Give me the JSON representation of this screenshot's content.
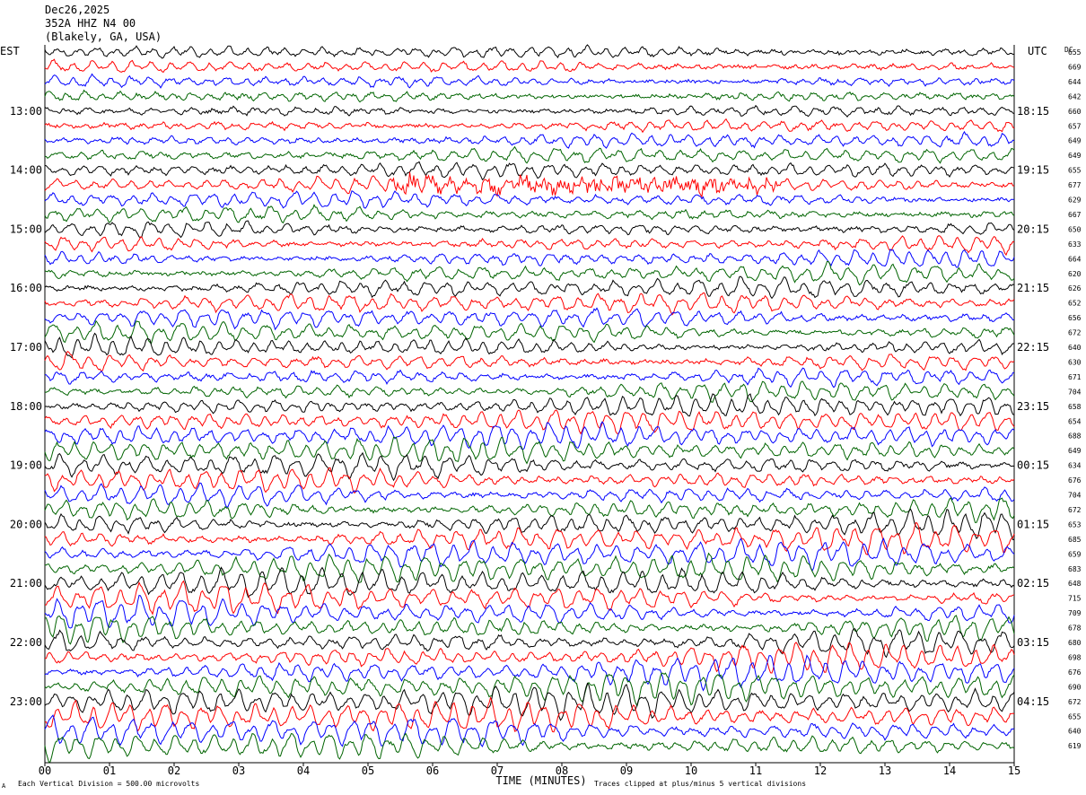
{
  "header": {
    "date": "Dec26,2025",
    "station": "352A HHZ N4 00",
    "location": "(Blakely, GA, USA)"
  },
  "left_axis_label": "EST",
  "right_axis_label": "UTC",
  "dc_label": "DC",
  "footer": {
    "vertical_division": "Each Vertical Division =  500.00 microvolts",
    "clip_note": "Traces clipped at plus/minus 5 vertical divisions",
    "corner_mark": "А"
  },
  "colors": [
    "#000000",
    "#ff0000",
    "#0000ff",
    "#006400"
  ],
  "chart_data": {
    "type": "line",
    "title": "352A HHZ N4 00",
    "xlabel": "TIME (MINUTES)",
    "xlim": [
      0,
      15
    ],
    "x_ticks": [
      "00",
      "01",
      "02",
      "03",
      "04",
      "05",
      "06",
      "07",
      "08",
      "09",
      "10",
      "11",
      "12",
      "13",
      "14",
      "15"
    ],
    "rows": 48,
    "left_time_labels": [
      "13:00",
      "14:00",
      "15:00",
      "16:00",
      "17:00",
      "18:00",
      "19:00",
      "20:00",
      "21:00",
      "22:00",
      "23:00"
    ],
    "right_time_labels": [
      "18:15",
      "19:15",
      "20:15",
      "21:15",
      "22:15",
      "23:15",
      "00:15",
      "01:15",
      "02:15",
      "03:15",
      "04:15"
    ],
    "dc_offsets": [
      655,
      669,
      644,
      642,
      660,
      657,
      649,
      649,
      655,
      677,
      629,
      667,
      650,
      633,
      664,
      620,
      626,
      652,
      656,
      672,
      640,
      630,
      671,
      704,
      658,
      654,
      688,
      649,
      634,
      676,
      704,
      672,
      653,
      685,
      659,
      683,
      648,
      715,
      709,
      678,
      680,
      698,
      676,
      690,
      672,
      655,
      640,
      619
    ]
  }
}
